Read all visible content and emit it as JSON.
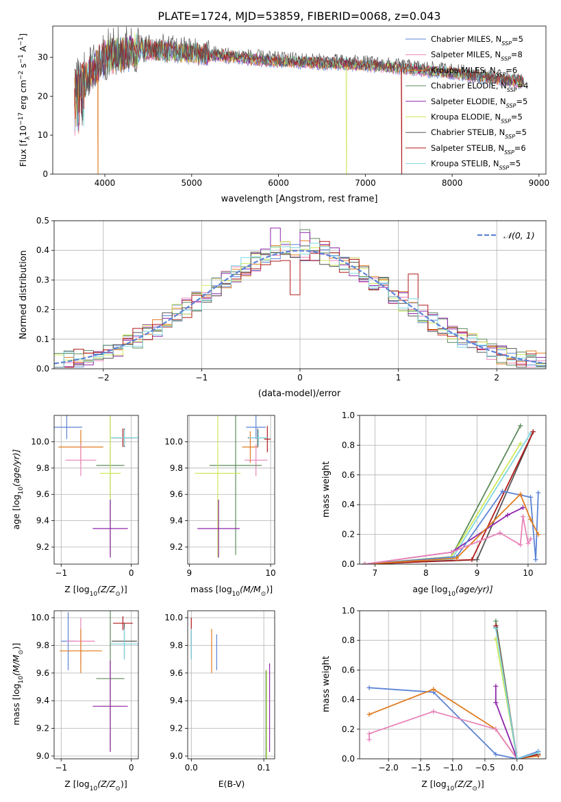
{
  "figure": {
    "title": "PLATE=1724, MJD=53859, FIBERID=0068, z=0.043"
  },
  "colors": {
    "Chabrier MILES": "#5b83d6",
    "Salpeter MILES": "#e883b8",
    "Kroupa MILES": "#e07b1e",
    "Chabrier ELODIE": "#5a8a5a",
    "Salpeter ELODIE": "#8e24aa",
    "Kroupa ELODIE": "#cde85a",
    "Chabrier STELIB": "#555555",
    "Salpeter STELIB": "#b01818",
    "Kroupa STELIB": "#7fd6e0",
    "normal_curve": "#5b83d6"
  },
  "chart_data": [
    {
      "id": "spectrum",
      "type": "line",
      "xlabel": "wavelength [Angstrom, rest frame]",
      "ylabel": "Flux [f",
      "ylabel_parts": [
        "Flux [f",
        "λ",
        "10",
        "−17",
        " erg cm",
        "−2",
        " s",
        "−1",
        " A",
        "−1",
        "]"
      ],
      "xlim": [
        3400,
        9080
      ],
      "ylim": [
        0,
        38
      ],
      "xticks": [
        4000,
        5000,
        6000,
        7000,
        8000,
        9000
      ],
      "yticks": [
        0,
        10,
        20,
        30
      ],
      "grid": false,
      "legend_position": "upper-right",
      "x_range": [
        3650,
        8830
      ],
      "trend": {
        "x": [
          3650,
          3800,
          4000,
          4200,
          4500,
          5000,
          5500,
          6000,
          6500,
          7000,
          7500,
          8000,
          8500,
          8830
        ],
        "y": [
          22,
          25,
          30,
          31,
          32,
          31,
          30,
          29,
          28.5,
          28,
          27,
          26,
          24.5,
          23.5
        ]
      },
      "dropouts": [
        {
          "model": "Kroupa MILES",
          "x": 3920,
          "y": 0
        },
        {
          "model": "Kroupa ELODIE",
          "x": 6780,
          "y": 0
        },
        {
          "model": "Salpeter STELIB",
          "x": 7420,
          "y": 0
        }
      ],
      "series": [
        {
          "name": "Chabrier MILES",
          "label": "Chabrier MILES, N",
          "sub": "SSP",
          "n": "5"
        },
        {
          "name": "Salpeter MILES",
          "label": "Salpeter MILES, N",
          "sub": "SSP",
          "n": "8"
        },
        {
          "name": "Kroupa MILES",
          "label": "Kroupa MILES, N",
          "sub": "SSP",
          "n": "6"
        },
        {
          "name": "Chabrier ELODIE",
          "label": "Chabrier ELODIE, N",
          "sub": "SSP",
          "n": "4"
        },
        {
          "name": "Salpeter ELODIE",
          "label": "Salpeter ELODIE, N",
          "sub": "SSP",
          "n": "5"
        },
        {
          "name": "Kroupa ELODIE",
          "label": "Kroupa ELODIE, N",
          "sub": "SSP",
          "n": "5"
        },
        {
          "name": "Chabrier STELIB",
          "label": "Chabrier STELIB, N",
          "sub": "SSP",
          "n": "5"
        },
        {
          "name": "Salpeter STELIB",
          "label": "Salpeter STELIB, N",
          "sub": "SSP",
          "n": "6"
        },
        {
          "name": "Kroupa STELIB",
          "label": "Kroupa STELIB, N",
          "sub": "SSP",
          "n": "5"
        }
      ]
    },
    {
      "id": "residuals",
      "type": "histogram",
      "xlabel": "(data-model)/error",
      "ylabel": "Normed distribution",
      "xlim": [
        -2.5,
        2.5
      ],
      "ylim": [
        0,
        0.5
      ],
      "xticks": [
        -2,
        -1,
        0,
        1,
        2
      ],
      "yticks": [
        0.0,
        0.1,
        0.2,
        0.3,
        0.4,
        0.5
      ],
      "grid": true,
      "legend_position": "upper-right",
      "legend": [
        {
          "name": "normal_curve",
          "label": "𝒩(0, 1)"
        }
      ],
      "bin_width": 0.1,
      "bins_start": -2.5,
      "sample_bins": {
        "Salpeter ELODIE": {
          "x": [
            -0.3,
            -0.1,
            0.0,
            0.2
          ],
          "y": [
            0.475,
            0.4,
            0.46,
            0.42
          ]
        },
        "Chabrier ELODIE": {
          "x": [
            0.0,
            0.1
          ],
          "y": [
            0.47,
            0.44
          ]
        },
        "Salpeter STELIB": {
          "x": [
            -0.1,
            0.2,
            1.1
          ],
          "y": [
            0.25,
            0.43,
            0.32
          ]
        }
      }
    },
    {
      "id": "age_vs_Z",
      "type": "errorbar",
      "xlabel": "Z [log",
      "xlabel_parts": [
        "Z [log",
        "10",
        "(Z/Z",
        "⊙",
        ")]"
      ],
      "ylabel_parts": [
        "age  [log",
        "10",
        "(age/yr)]"
      ],
      "xlim": [
        -1.1,
        0.1
      ],
      "ylim": [
        9.07,
        10.2
      ],
      "xticks": [
        -1,
        0
      ],
      "yticks": [
        9.2,
        9.4,
        9.6,
        9.8,
        10.0
      ],
      "grid": true,
      "points": [
        {
          "model": "Chabrier MILES",
          "x": -0.92,
          "xerr": 0.22,
          "y": 10.11,
          "yerr": 0.09
        },
        {
          "model": "Kroupa MILES",
          "x": -0.72,
          "xerr": 0.32,
          "y": 9.96,
          "yerr": 0.13
        },
        {
          "model": "Salpeter MILES",
          "x": -0.72,
          "xerr": 0.22,
          "y": 9.86,
          "yerr": 0.12
        },
        {
          "model": "Chabrier STELIB",
          "x": -0.1,
          "xerr": 0.18,
          "y": 10.03,
          "yerr": 0.07
        },
        {
          "model": "Salpeter STELIB",
          "x": -0.12,
          "xerr": 0.14,
          "y": 10.03,
          "yerr": 0.07
        },
        {
          "model": "Kroupa STELIB",
          "x": -0.1,
          "xerr": 0.2,
          "y": 10.03,
          "yerr": 0.06
        },
        {
          "model": "Chabrier ELODIE",
          "x": -0.3,
          "xerr": 0.2,
          "y": 9.82,
          "yerr": 0.68
        },
        {
          "model": "Kroupa ELODIE",
          "x": -0.3,
          "xerr": 0.15,
          "y": 9.76,
          "yerr": 0.64
        },
        {
          "model": "Salpeter ELODIE",
          "x": -0.3,
          "xerr": 0.25,
          "y": 9.34,
          "yerr": 0.22
        }
      ]
    },
    {
      "id": "age_vs_mass",
      "type": "errorbar",
      "xlabel_parts": [
        "mass [log",
        "10",
        "(M/M",
        "⊙",
        ")]"
      ],
      "xlim": [
        8.98,
        10.05
      ],
      "ylim": [
        9.07,
        10.2
      ],
      "xticks": [
        9,
        10
      ],
      "yticks": [
        9.2,
        9.4,
        9.6,
        9.8,
        10.0
      ],
      "grid": true,
      "points": [
        {
          "model": "Chabrier MILES",
          "x": 9.82,
          "xerr": 0.12,
          "y": 10.11,
          "yerr": 0.09
        },
        {
          "model": "Kroupa MILES",
          "x": 9.75,
          "xerr": 0.1,
          "y": 9.96,
          "yerr": 0.12
        },
        {
          "model": "Salpeter MILES",
          "x": 9.82,
          "xerr": 0.14,
          "y": 9.86,
          "yerr": 0.12
        },
        {
          "model": "Chabrier STELIB",
          "x": 9.84,
          "xerr": 0.12,
          "y": 10.03,
          "yerr": 0.07
        },
        {
          "model": "Salpeter STELIB",
          "x": 9.96,
          "xerr": 0.04,
          "y": 10.02,
          "yerr": 0.1
        },
        {
          "model": "Kroupa STELIB",
          "x": 9.85,
          "xerr": 0.12,
          "y": 10.03,
          "yerr": 0.06
        },
        {
          "model": "Chabrier ELODIE",
          "x": 9.57,
          "xerr": 0.32,
          "y": 9.82,
          "yerr": 0.68
        },
        {
          "model": "Kroupa ELODIE",
          "x": 9.35,
          "xerr": 0.28,
          "y": 9.76,
          "yerr": 0.64
        },
        {
          "model": "Salpeter ELODIE",
          "x": 9.36,
          "xerr": 0.26,
          "y": 9.34,
          "yerr": 0.22
        }
      ]
    },
    {
      "id": "mass_weight_vs_age",
      "type": "line",
      "xlabel_parts": [
        "age  [log",
        "10",
        "(age/yr)]"
      ],
      "ylabel": "mass weight",
      "xlim": [
        6.7,
        10.35
      ],
      "ylim": [
        0,
        1.0
      ],
      "xticks": [
        7,
        8,
        9,
        10
      ],
      "yticks": [
        0.0,
        0.2,
        0.4,
        0.6,
        0.8,
        1.0
      ],
      "grid": true,
      "series": [
        {
          "name": "Chabrier ELODIE",
          "x": [
            6.8,
            8.5,
            9.85
          ],
          "y": [
            0.0,
            0.05,
            0.93
          ]
        },
        {
          "name": "Kroupa ELODIE",
          "x": [
            6.8,
            8.5,
            9.85
          ],
          "y": [
            0.0,
            0.05,
            0.81
          ]
        },
        {
          "name": "Kroupa STELIB",
          "x": [
            6.8,
            8.5,
            10.05
          ],
          "y": [
            0.0,
            0.03,
            0.88
          ]
        },
        {
          "name": "Chabrier STELIB",
          "x": [
            6.8,
            9.0,
            10.1
          ],
          "y": [
            0.0,
            0.03,
            0.89
          ]
        },
        {
          "name": "Salpeter STELIB",
          "x": [
            6.8,
            8.9,
            10.1
          ],
          "y": [
            0.0,
            0.03,
            0.89
          ]
        },
        {
          "name": "Salpeter ELODIE",
          "x": [
            6.8,
            8.5,
            9.6,
            9.9
          ],
          "y": [
            0.0,
            0.08,
            0.33,
            0.38
          ]
        },
        {
          "name": "Chabrier MILES",
          "x": [
            6.8,
            8.6,
            9.5,
            10.05,
            10.15,
            10.2
          ],
          "y": [
            0.0,
            0.05,
            0.49,
            0.45,
            0.03,
            0.48
          ]
        },
        {
          "name": "Kroupa MILES",
          "x": [
            6.8,
            8.6,
            9.85,
            10.05,
            10.2
          ],
          "y": [
            0.0,
            0.04,
            0.47,
            0.3,
            0.2
          ]
        },
        {
          "name": "Salpeter MILES",
          "x": [
            6.8,
            8.5,
            9.45,
            9.85,
            9.9,
            10.0,
            10.05
          ],
          "y": [
            0.0,
            0.08,
            0.21,
            0.13,
            0.32,
            0.14,
            0.17
          ]
        }
      ]
    },
    {
      "id": "mass_vs_Z",
      "type": "errorbar",
      "xlabel_parts": [
        "Z [log",
        "10",
        "(Z/Z",
        "⊙",
        ")]"
      ],
      "ylabel_parts": [
        "mass [log",
        "10",
        "(M/M",
        "⊙",
        ")]"
      ],
      "xlim": [
        -1.1,
        0.1
      ],
      "ylim": [
        8.98,
        10.05
      ],
      "xticks": [
        -1,
        0
      ],
      "yticks": [
        9.0,
        9.2,
        9.4,
        9.6,
        9.8,
        10.0
      ],
      "grid": true,
      "points": [
        {
          "model": "Chabrier MILES",
          "x": -0.9,
          "xerr": 0.1,
          "y": 9.83,
          "yerr": 0.21
        },
        {
          "model": "Salpeter MILES",
          "x": -0.72,
          "xerr": 0.2,
          "y": 9.83,
          "yerr": 0.17
        },
        {
          "model": "Kroupa MILES",
          "x": -0.72,
          "xerr": 0.3,
          "y": 9.76,
          "yerr": 0.16
        },
        {
          "model": "Salpeter STELIB",
          "x": -0.12,
          "xerr": 0.14,
          "y": 9.96,
          "yerr": 0.05
        },
        {
          "model": "Chabrier STELIB",
          "x": -0.1,
          "xerr": 0.18,
          "y": 9.83,
          "yerr": 0.13
        },
        {
          "model": "Kroupa STELIB",
          "x": -0.1,
          "xerr": 0.2,
          "y": 9.81,
          "yerr": 0.11
        },
        {
          "model": "Chabrier ELODIE",
          "x": -0.3,
          "xerr": 0.2,
          "y": 9.56,
          "yerr": 0.52
        },
        {
          "model": "Kroupa ELODIE",
          "x": -0.3,
          "xerr": 0.15,
          "y": 9.36,
          "yerr": 0.33
        },
        {
          "model": "Salpeter ELODIE",
          "x": -0.3,
          "xerr": 0.25,
          "y": 9.36,
          "yerr": 0.33
        }
      ]
    },
    {
      "id": "mass_vs_ebv",
      "type": "errorbar",
      "xlabel": "E(B-V)",
      "xlim": [
        -0.005,
        0.115
      ],
      "ylim": [
        8.98,
        10.05
      ],
      "xticks": [
        0.0,
        0.1
      ],
      "yticks": [
        9.0,
        9.2,
        9.4,
        9.6,
        9.8,
        10.0
      ],
      "grid": true,
      "points": [
        {
          "model": "Salpeter STELIB",
          "x": 0.0,
          "xerr": 0,
          "y": 9.9,
          "yerr": 0.1
        },
        {
          "model": "Chabrier STELIB",
          "x": 0.0,
          "xerr": 0,
          "y": 9.8,
          "yerr": 0.1
        },
        {
          "model": "Kroupa STELIB",
          "x": 0.0,
          "xerr": 0,
          "y": 9.81,
          "yerr": 0.11
        },
        {
          "model": "Kroupa MILES",
          "x": 0.028,
          "xerr": 0,
          "y": 9.76,
          "yerr": 0.16
        },
        {
          "model": "Chabrier MILES",
          "x": 0.035,
          "xerr": 0,
          "y": 9.75,
          "yerr": 0.13
        },
        {
          "model": "Chabrier ELODIE",
          "x": 0.103,
          "xerr": 0,
          "y": 9.3,
          "yerr": 0.32
        },
        {
          "model": "Kroupa ELODIE",
          "x": 0.104,
          "xerr": 0,
          "y": 9.3,
          "yerr": 0.32
        },
        {
          "model": "Salpeter ELODIE",
          "x": 0.108,
          "xerr": 0,
          "y": 9.35,
          "yerr": 0.32
        }
      ]
    },
    {
      "id": "mass_weight_vs_Z",
      "type": "line",
      "xlabel_parts": [
        "Z [log",
        "10",
        "(Z/Z",
        "⊙",
        ")]"
      ],
      "ylabel": "mass weight",
      "xlim": [
        -2.45,
        0.45
      ],
      "ylim": [
        0,
        1.0
      ],
      "xticks": [
        -2.0,
        -1.5,
        -1.0,
        -0.5,
        0.0
      ],
      "xticklabels": [
        "−2.0",
        "−1.5",
        "−1.0",
        "−0.5",
        "0.0"
      ],
      "yticks": [
        0.0,
        0.2,
        0.4,
        0.6,
        0.8,
        1.0
      ],
      "grid": true,
      "series": [
        {
          "name": "Chabrier MILES",
          "x": [
            -2.3,
            -1.3,
            -0.33,
            0.0,
            0.33
          ],
          "y": [
            0.48,
            0.45,
            0.03,
            0.0,
            0.05
          ]
        },
        {
          "name": "Kroupa MILES",
          "x": [
            -2.3,
            -1.3,
            -0.33,
            0.0,
            0.33
          ],
          "y": [
            0.3,
            0.47,
            0.2,
            0.0,
            0.02
          ]
        },
        {
          "name": "Salpeter MILES",
          "x": [
            -2.3,
            -2.3,
            -1.3,
            -0.33,
            0.0
          ],
          "y": [
            0.13,
            0.17,
            0.32,
            0.2,
            0.0
          ]
        },
        {
          "name": "Salpeter ELODIE",
          "x": [
            -0.33,
            -0.33,
            0.0
          ],
          "y": [
            0.49,
            0.38,
            0.0
          ]
        },
        {
          "name": "Chabrier ELODIE",
          "x": [
            -0.33,
            0.0
          ],
          "y": [
            0.93,
            0.0
          ]
        },
        {
          "name": "Kroupa ELODIE",
          "x": [
            -0.33,
            0.0
          ],
          "y": [
            0.81,
            0.0
          ]
        },
        {
          "name": "Chabrier STELIB",
          "x": [
            -0.33,
            0.0,
            0.33
          ],
          "y": [
            0.89,
            0.0,
            0.03
          ]
        },
        {
          "name": "Salpeter STELIB",
          "x": [
            -0.33,
            0.0,
            0.33
          ],
          "y": [
            0.9,
            0.0,
            0.03
          ]
        },
        {
          "name": "Kroupa STELIB",
          "x": [
            -0.33,
            0.0,
            0.33
          ],
          "y": [
            0.88,
            0.0,
            0.04
          ]
        }
      ]
    }
  ]
}
